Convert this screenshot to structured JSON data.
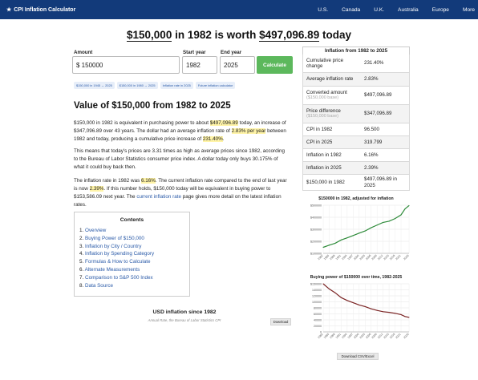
{
  "nav": {
    "brand": "CPI Inflation Calculator",
    "links": [
      "U.S.",
      "Canada",
      "U.K.",
      "Australia",
      "Europe",
      "More"
    ]
  },
  "headline": {
    "amount_old": "$150,000",
    "mid": " in 1982 is worth ",
    "amount_new": "$497,096.89",
    "end": " today"
  },
  "form": {
    "amount_label": "Amount",
    "amount_value": "$ 150000",
    "start_label": "Start year",
    "start_value": "1982",
    "end_label": "End year",
    "end_value": "2025",
    "calc_label": "Calculate"
  },
  "chips": [
    "$150,000 in 1945 → 2025",
    "$150,000 in 1980 → 2025",
    "Inflation rate in 2025",
    "Future inflation calculator"
  ],
  "article": {
    "h2": "Value of $150,000 from 1982 to 2025",
    "p1": [
      "$150,000 in 1982 is equivalent in purchasing power to about ",
      "$497,096.89",
      " today, an increase of $347,096.89 over 43 years. The dollar had an average inflation rate of ",
      "2.83% per year",
      " between 1982 and today, producing a cumulative price increase of ",
      "231.40%",
      "."
    ],
    "p2": "This means that today's prices are 3.31 times as high as average prices since 1982, according to the Bureau of Labor Statistics consumer price index. A dollar today only buys 30.175% of what it could buy back then.",
    "p3": [
      "The inflation rate in 1982 was ",
      "6.16%",
      ". The current inflation rate compared to the end of last year is now ",
      "2.39%",
      ". If this number holds, $150,000 today will be equivalent in buying power to $153,586.09 next year. The ",
      "current inflation rate",
      " page gives more detail on the latest inflation rates."
    ]
  },
  "toc": {
    "title": "Contents",
    "items": [
      "Overview",
      "Buying Power of $150,000",
      "Inflation by City / Country",
      "Inflation by Spending Category",
      "Formulas & How to Calculate",
      "Alternate Measurements",
      "Comparison to S&P 500 Index",
      "Data Source"
    ]
  },
  "usd": {
    "title": "USD inflation since 1982",
    "sub": "Annual Rate, the Bureau of Labor Statistics CPI",
    "download": "Download"
  },
  "summary": {
    "title": "Inflation from 1982 to 2025",
    "rows": [
      {
        "k": "Cumulative price change",
        "v": "231.40%"
      },
      {
        "k": "Average inflation rate",
        "v": "2.83%"
      },
      {
        "k": "Converted amount",
        "sub": "($150,000 base)",
        "v": "$497,096.89"
      },
      {
        "k": "Price difference",
        "sub": "($150,000 base)",
        "v": "$347,096.89"
      },
      {
        "k": "CPI in 1982",
        "v": "96.500"
      },
      {
        "k": "CPI in 2025",
        "v": "319.799"
      },
      {
        "k": "Inflation in 1982",
        "v": "6.16%"
      },
      {
        "k": "Inflation in 2025",
        "v": "2.39%"
      },
      {
        "k": "$150,000 in 1982",
        "v": "$497,096.89 in 2025"
      }
    ]
  },
  "chart_data": [
    {
      "type": "line",
      "title": "$150000 in 1982, adjusted for inflation",
      "x_ticks": [
        "1982",
        "1985",
        "1988",
        "1991",
        "1994",
        "1997",
        "2000",
        "2003",
        "2006",
        "2009",
        "2012",
        "2015",
        "2018",
        "2021",
        "2025"
      ],
      "y_ticks": [
        "$500000",
        "$400000",
        "$300000",
        "$200000",
        "$100000"
      ],
      "ylim": [
        100000,
        500000
      ],
      "color": "#2e8b3a",
      "x": [
        1982,
        1985,
        1988,
        1991,
        1994,
        1997,
        2000,
        2003,
        2006,
        2009,
        2012,
        2015,
        2018,
        2021,
        2023,
        2025
      ],
      "values": [
        150000,
        168000,
        184000,
        211000,
        229000,
        248000,
        268000,
        286000,
        313000,
        335000,
        357000,
        367000,
        389000,
        420000,
        470000,
        497097
      ]
    },
    {
      "type": "line",
      "title": "Buying power of $150000 over time, 1982-2025",
      "x_ticks": [
        "1982",
        "1985",
        "1988",
        "1991",
        "1994",
        "1997",
        "2000",
        "2003",
        "2006",
        "2009",
        "2012",
        "2015",
        "2018",
        "2021",
        "2025"
      ],
      "y_ticks": [
        "$150000",
        "140000",
        "120000",
        "100000",
        "80000",
        "60000",
        "40000",
        "20000",
        "0"
      ],
      "ylim": [
        0,
        150000
      ],
      "color": "#7a2323",
      "x": [
        1982,
        1985,
        1988,
        1991,
        1994,
        1997,
        2000,
        2003,
        2006,
        2009,
        2012,
        2015,
        2018,
        2021,
        2023,
        2025
      ],
      "values": [
        150000,
        134000,
        122000,
        107000,
        98000,
        91000,
        84000,
        79000,
        72000,
        67000,
        63000,
        61000,
        58000,
        54000,
        48000,
        45263
      ]
    }
  ],
  "csv_button": "Download CSV/Excel"
}
